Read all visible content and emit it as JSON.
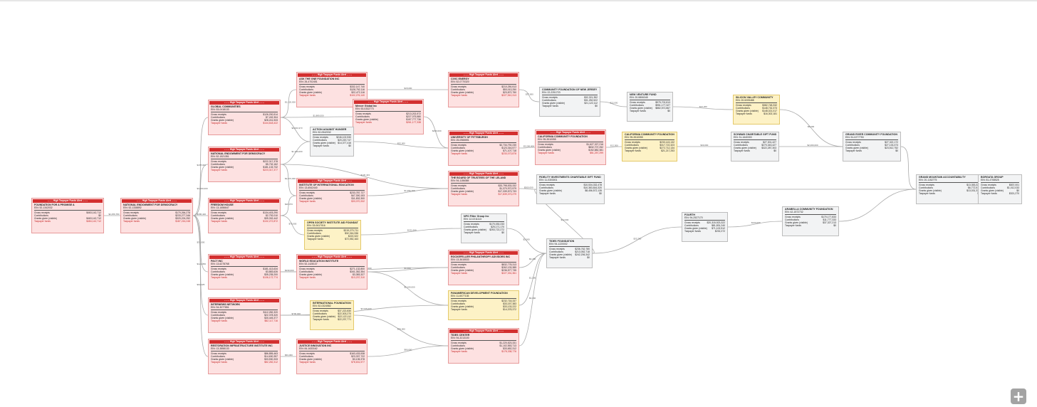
{
  "flag_label": "– – – High Taxpayer Funds Alert – – –",
  "field_labels": {
    "gross_receipts": "Gross receipts",
    "contributions": "Contributions",
    "grants_given": "Grants given (visible)",
    "taxpayer_funds": "Taxpayer funds"
  },
  "zoom_button": "+",
  "nodes": [
    {
      "name": "FOUNDATION FOR A PROMISE A",
      "ein": "EIN: 52-1342032",
      "highlight": "red",
      "alert": true,
      "values": [
        "$463,142,712",
        "$0",
        "$463,142,712",
        "$484,142,712"
      ]
    },
    {
      "name": "NATIONAL ENDOWMENT FOR DEMOCRACY",
      "ein": "EIN: 52-1338892",
      "highlight": "red",
      "alert": true,
      "values": [
        "$170,264,278",
        "$233,277,346",
        "$320,224,252",
        "$187,216,248"
      ]
    },
    {
      "name": "GLOBAL COMMUNITIES",
      "ein": "EIN: 53-0418133",
      "highlight": "red",
      "alert": true,
      "values": [
        "$126,200,514",
        "$7,432,304",
        "$28,241,533",
        "$144,618,422"
      ]
    },
    {
      "name": "NATIONAL ENDOWMENT FOR DEMOCRACY",
      "ein": "EIN: 52-1521351",
      "highlight": "red",
      "alert": true,
      "values": [
        "$222,317,378",
        "$5,732,162",
        "$181,133,732",
        "$223,317,377"
      ]
    },
    {
      "name": "FREEDOM HOUSE",
      "ein": "EIN: 13-1656647",
      "highlight": "red",
      "alert": true,
      "values": [
        "$134,403,290",
        "$2,792,010",
        "$39,332,442",
        "$132,272,872"
      ]
    },
    {
      "name": "PACT INC",
      "ein": "EIN: 13-6278768",
      "highlight": "red",
      "alert": true,
      "values": [
        "$181,413,634",
        "$3,883,626",
        "$35,235,200",
        "$136,172,774"
      ]
    },
    {
      "name": "INTERNEWS NETWORK",
      "ein": "EIN: 94-3077851",
      "highlight": "red",
      "alert": true,
      "values": [
        "$112,282,320",
        "$22,378,320",
        "$30,445,377",
        "$82,117,716"
      ]
    },
    {
      "name": "RESTORATION INFRASTRUCTURE INSTITUTE INC",
      "ein": "EIN: 13-3858133",
      "highlight": "red",
      "alert": true,
      "values": [
        "$86,855,463",
        "$14,630,357",
        "$33,530,333",
        "$82,282,312"
      ]
    },
    {
      "name": "ASK THE GNE FOUNDATION INC",
      "ein": "EIN: 26-4702451",
      "highlight": "red",
      "alert": true,
      "values": [
        "$332,147,740",
        "$128,752,116",
        "$22,472,116",
        "$102,276,140"
      ]
    },
    {
      "name": "Mercer Global Inc",
      "ein": "EIN: 53-0332773",
      "highlight": "red",
      "alert": true,
      "values": [
        "$213,202,572",
        "$227,075,580",
        "$157,777,736",
        "$261,177,338"
      ]
    },
    {
      "name": "ACTION AGAINST HUNGER",
      "ein": "EIN: 52-0542032",
      "highlight": "none",
      "alert": false,
      "values": [
        "$246,102,530",
        "$20,220,747",
        "$14,377,416",
        "$0"
      ]
    },
    {
      "name": "INSTITUTE OF INTERNATIONAL EDUCATION",
      "ein": "EIN: 13-6542440",
      "highlight": "red",
      "alert": true,
      "values": [
        "$233,787,727",
        "$47,300,153",
        "$11,832,300",
        "$33,070,332"
      ]
    },
    {
      "name": "OPEN SOCIETY INSTITUTE AID FOUNDATION",
      "ein": "EIN: 33-0617016",
      "highlight": "yellow",
      "alert": false,
      "values": [
        "$219,270,711",
        "$32,316,336",
        "$222,322",
        "$72,052,163"
      ]
    },
    {
      "name": "WORLD EDUCATION INSTITUTE",
      "ein": "EIN: 52-1428137",
      "highlight": "red",
      "alert": true,
      "values": [
        "$271,132,800",
        "$341,352,354",
        "$3,383,327",
        "$13,237,310"
      ]
    },
    {
      "name": "INTERNATIONAL FOUNDATION",
      "ein": "EIN: 52-0324582",
      "highlight": "yellow",
      "alert": false,
      "values": [
        "$37,222,830",
        "$22,303,270",
        "$22,122,112",
        "$22,237,771"
      ]
    },
    {
      "name": "JUSTICE INNOVATION INC",
      "ein": "EIN: 84-1633162",
      "highlight": "red",
      "alert": true,
      "values": [
        "$163,433,538",
        "$23,337,722",
        "$3,135,378",
        "$78,631,577"
      ]
    },
    {
      "name": "CIVIC ENERGY",
      "ein": "EIN: 52-0770320",
      "highlight": "red",
      "alert": true,
      "values": [
        "$210,250,513",
        "$53,013,250",
        "$23,872,750",
        "$227,510,313"
      ]
    },
    {
      "name": "UNIVERSITY OF PITTSBURGH",
      "ein": "EIN: 25-0965591",
      "highlight": "red",
      "alert": true,
      "values": [
        "$2,734,792,230",
        "$123,316,577",
        "$71,107,718",
        "$233,073,878"
      ]
    },
    {
      "name": "THE BOARD OF TRUSTEES OF THE LELAND",
      "ein": "EIN: 94-1156365",
      "highlight": "red",
      "alert": true,
      "values": [
        "$33,798,533,332",
        "$1,370,972,579",
        "$17,339,573,733",
        "$17,839,373,279"
      ]
    },
    {
      "name": "NPO Filter Group Inc",
      "ein": "EIN: 12-0211113",
      "highlight": "none",
      "alert": false,
      "values": [
        "$170,030,233",
        "$25,171,170",
        "$253,722,272",
        "$0"
      ]
    },
    {
      "name": "ROCKEFELLER PHILANTHROPY ADVISORS INC",
      "ein": "EIN: 13-3615533",
      "highlight": "red",
      "alert": true,
      "values": [
        "$832,778,313",
        "$262,133,385",
        "$236,577,735",
        "$227,331,361"
      ]
    },
    {
      "name": "PANAMERICAN DEVELOPMENT FOUNDATION",
      "ein": "EIN: 11-6077135",
      "highlight": "yellow",
      "alert": false,
      "values": [
        "$232,718,337",
        "$33,157,383",
        "$33,133,222",
        "$14,378,372"
      ]
    },
    {
      "name": "TIDES CENTER",
      "ein": "EIN: 94-3213100",
      "highlight": "red",
      "alert": true,
      "values": [
        "$1,220,523,331",
        "$1,102,553,713",
        "$33,652,312",
        "$178,338,776"
      ]
    },
    {
      "name": "COMMUNITY FOUNDATION OF NEW JERSEY",
      "ein": "EIN: 22-2251723",
      "highlight": "none",
      "alert": false,
      "values": [
        "$32,321,352",
        "$31,252,522",
        "$21,122,112",
        "$0"
      ]
    },
    {
      "name": "CALIFORNIA COMMUNITY FOUNDATION",
      "ein": "EIN: 95-3510055",
      "highlight": "red",
      "alert": true,
      "values": [
        "$1,627,327,216",
        "$832,707,252",
        "$152,882,381",
        "$51,257,299"
      ]
    },
    {
      "name": "FIDELITY INVESTMENTS CHARITABLE GIFT FUND",
      "ein": "EIN: 11-0303001",
      "highlight": "none",
      "alert": false,
      "values": [
        "$10,534,332,478",
        "$10,383,816,320",
        "$8,456,572,135",
        "$0"
      ]
    },
    {
      "name": "TIDES FOUNDATION",
      "ein": "EIN: 94-1220002",
      "highlight": "none",
      "alert": false,
      "values": [
        "$236,762,780",
        "$213,052,718",
        "$242,206,342",
        "$0"
      ]
    },
    {
      "name": "NEW VENTURE FUND",
      "ein": "EIN: 20-5806345",
      "highlight": "none",
      "alert": false,
      "values": [
        "$975,702,813",
        "$951,177,327",
        "$882,572,867",
        "$0"
      ]
    },
    {
      "name": "CALIFORNIA COMMUNITY FOUNDATION",
      "ein": "EIN: 95-3510055",
      "highlight": "yellow",
      "alert": false,
      "values": [
        "$233,143,132",
        "$317,722,323",
        "$272,712,134",
        "$21,217,253"
      ]
    },
    {
      "name": "SILICON VALLEY COMMUNITY",
      "ein": "EIN: 20-5205488",
      "highlight": "yellow",
      "alert": false,
      "values": [
        "$382,748,332",
        "$148,732,373",
        "$148,021,017",
        "$16,302,181"
      ]
    },
    {
      "name": "SCHWAB CHARITABLE GIFT FUND",
      "ein": "EIN: 31-1640300",
      "highlight": "none",
      "alert": false,
      "values": [
        "$27,301,427",
        "$270,343,427",
        "$322,287,303",
        "$0"
      ]
    },
    {
      "name": "FOURTH",
      "ein": "EIN: 94-2527170",
      "highlight": "none",
      "alert": false,
      "values": [
        "$20,315,923,322",
        "$81,831,240",
        "$71,102,512",
        "$232,272"
      ]
    },
    {
      "name": "ARABELLA COMMUNITY FOUNDATION",
      "ein": "EIN: 42-1572732",
      "highlight": "none",
      "alert": false,
      "values": [
        "$170,177,833",
        "$11,777,333",
        "$37,327,213",
        "$0"
      ]
    },
    {
      "name": "GRAND RIVER COMMUNITY FOUNDATION",
      "ein": "EIN: 51-0277753",
      "highlight": "none",
      "alert": false,
      "values": [
        "$27,322,172",
        "$27,133,373",
        "$23,512,752",
        "$0"
      ]
    },
    {
      "name": "GRAND MOUNTAIN ACCOUNTABILITY",
      "ein": "EIN: 20-1152775",
      "highlight": "none",
      "alert": false,
      "values": [
        "$13,353,334",
        "$6,772,514",
        "$13,031,337",
        "$0"
      ]
    },
    {
      "name": "BORGATA GROUP",
      "ein": "EIN: 81-4708525",
      "highlight": "none",
      "alert": false,
      "values": [
        "$837,001",
        "$1,012,033",
        "$0",
        "$321,270"
      ]
    }
  ],
  "edge_labels": [
    "$2,256,783",
    "$478,000",
    "$3,000,000",
    "$186,420",
    "$33,000",
    "$122,050",
    "$63,225",
    "$1,120,000",
    "$2,063,373",
    "$1,880,000",
    "$1,150,000",
    "$2,072,000",
    "$130,433",
    "$26,373",
    "$75,000",
    "$230,000",
    "$3,020,000",
    "$700,000",
    "$2,025,000",
    "$63,000",
    "$15,000",
    "$250,000",
    "$32,000",
    "$1,256,700",
    "$131,000",
    "$1,000",
    "$2,100,000",
    "$75,000",
    "$80,000",
    "$37,000",
    "$3,000,000",
    "$500,000",
    "$2,000",
    "$6,250",
    "$1,200",
    "$6,000",
    "$22,000",
    "$12,500",
    "$12,000",
    "$33,700",
    "$12,200",
    "$30,000",
    "$5,000",
    "$2,000,000",
    "$120,000"
  ]
}
